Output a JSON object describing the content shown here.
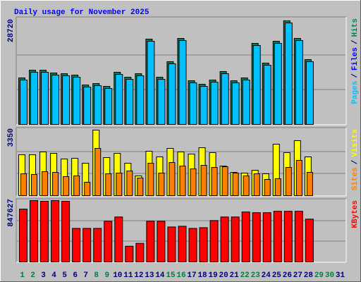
{
  "chart_data": [
    {
      "type": "bar",
      "title": "Daily usage for November 2025",
      "ylim": [
        0,
        28720
      ],
      "yticks": [
        28720
      ],
      "grid_divisions": 3,
      "legend_separator": "/",
      "series": [
        {
          "name": "Hits",
          "color": "#00805c",
          "values": [
            12896,
            15046,
            15046,
            14264,
            14069,
            13678,
            10942,
            11333,
            10552,
            14460,
            13092,
            14069,
            23643,
            13092,
            17391,
            23839,
            12115,
            11138,
            12310,
            14655,
            12115,
            12896,
            22471,
            17000,
            23057,
            28720,
            23839,
            17977,
            null,
            null,
            null
          ]
        },
        {
          "name": "Files",
          "color": "#0000ff",
          "values": [
            8200,
            9400,
            9400,
            8900,
            8800,
            8600,
            6900,
            7100,
            6600,
            9000,
            8200,
            8800,
            14800,
            8200,
            10900,
            14900,
            7600,
            7000,
            7700,
            9200,
            7600,
            8100,
            14000,
            10600,
            14400,
            17900,
            14900,
            11200,
            null,
            null,
            null
          ]
        },
        {
          "name": "Pages",
          "color": "#00c0ff",
          "values": [
            12310,
            14460,
            14460,
            13678,
            13483,
            13092,
            10356,
            10747,
            9966,
            13874,
            12506,
            13483,
            23057,
            12506,
            16805,
            23253,
            11529,
            10552,
            11724,
            14069,
            11529,
            12310,
            21885,
            16414,
            22471,
            28134,
            23253,
            17391,
            null,
            null,
            null
          ]
        }
      ]
    },
    {
      "type": "bar",
      "ylim": [
        0,
        3350
      ],
      "yticks": [
        3350
      ],
      "grid_divisions": 3,
      "legend_separator": "/",
      "series": [
        {
          "name": "Visits",
          "color": "#ffff00",
          "values": [
            2089,
            2089,
            2233,
            2161,
            1873,
            1909,
            1657,
            3350,
            1945,
            2161,
            1657,
            1009,
            2269,
            1981,
            2413,
            2233,
            2125,
            2449,
            2197,
            1513,
            1189,
            1153,
            1297,
            1117,
            2629,
            2197,
            2810,
            1981,
            null,
            null,
            null
          ]
        },
        {
          "name": "Sites",
          "color": "#ff8000",
          "values": [
            1117,
            1081,
            1225,
            1189,
            973,
            1009,
            684,
            2413,
            1117,
            1153,
            1261,
            901,
            1657,
            1153,
            1693,
            1513,
            1369,
            1549,
            1441,
            1477,
            1153,
            1009,
            1117,
            829,
            865,
            1441,
            1801,
            1189,
            null,
            null,
            null
          ]
        }
      ]
    },
    {
      "type": "bar",
      "ylim": [
        0,
        847627
      ],
      "yticks": [
        847627
      ],
      "grid_divisions": 3,
      "series": [
        {
          "name": "KBytes",
          "color": "#ff0000",
          "values": [
            729344,
            847627,
            837760,
            847627,
            837760,
            463232,
            463232,
            463232,
            561792,
            620928,
            216832,
            256256,
            561792,
            561792,
            482944,
            492800,
            463232,
            473088,
            571648,
            620928,
            620928,
            689920,
            680064,
            680064,
            699776,
            699776,
            699776,
            591360,
            null,
            null,
            null
          ]
        }
      ],
      "categories": [
        "1",
        "2",
        "3",
        "4",
        "5",
        "6",
        "7",
        "8",
        "9",
        "10",
        "11",
        "12",
        "13",
        "14",
        "15",
        "16",
        "17",
        "18",
        "19",
        "20",
        "21",
        "22",
        "23",
        "24",
        "25",
        "26",
        "27",
        "28",
        "29",
        "30",
        "31"
      ],
      "category_colors": [
        "#008040",
        "#008040",
        "#000080",
        "#000080",
        "#000080",
        "#000080",
        "#000080",
        "#008040",
        "#008040",
        "#000080",
        "#000080",
        "#000080",
        "#000080",
        "#000080",
        "#008040",
        "#008040",
        "#000080",
        "#000080",
        "#000080",
        "#000080",
        "#000080",
        "#008040",
        "#008040",
        "#000080",
        "#000080",
        "#000080",
        "#000080",
        "#000080",
        "#008040",
        "#008040",
        "#000080"
      ]
    }
  ]
}
